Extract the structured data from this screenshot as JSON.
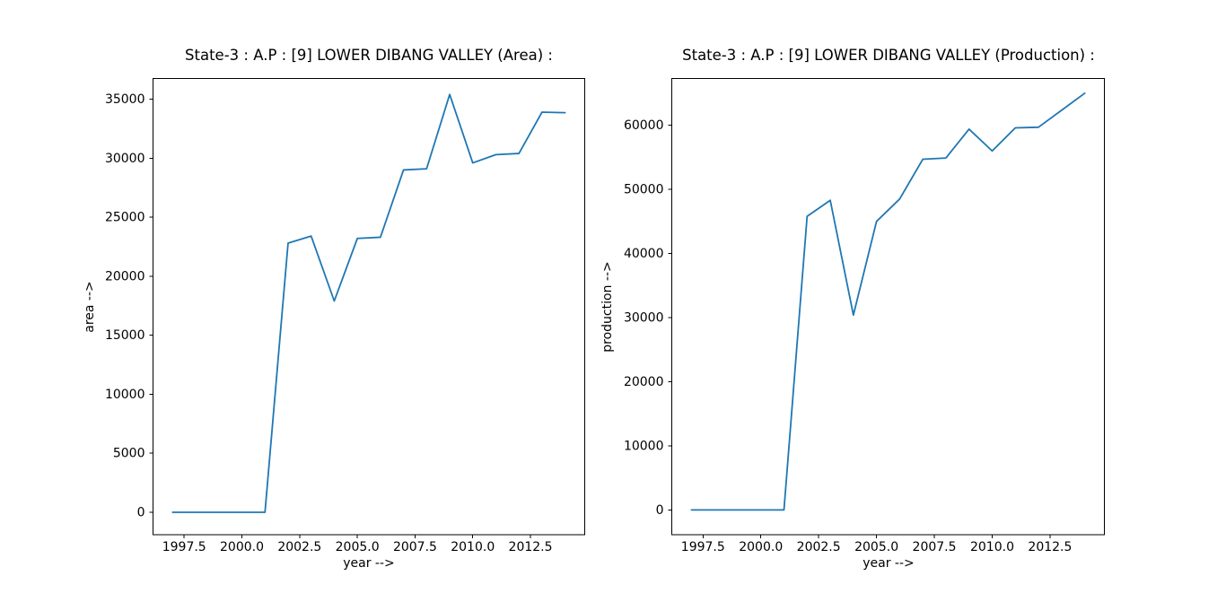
{
  "figure": {
    "background": "#ffffff",
    "text_color": "#000000",
    "spine_color": "#000000",
    "line_color": "#1f77b4"
  },
  "chart_data": [
    {
      "type": "line",
      "title": "State-3 : A.P : [9] LOWER DIBANG VALLEY (Area) :",
      "xlabel": "year -->",
      "ylabel": "area -->",
      "grid": false,
      "legend": null,
      "x": [
        1997,
        1998,
        1999,
        2000,
        2001,
        2002,
        2003,
        2004,
        2005,
        2006,
        2007,
        2008,
        2009,
        2010,
        2011,
        2012,
        2013,
        2014
      ],
      "values": [
        0,
        0,
        0,
        0,
        0,
        22800,
        23400,
        17900,
        23200,
        23300,
        29000,
        29100,
        35400,
        29600,
        30300,
        30400,
        33900,
        33850
      ],
      "xlim": [
        1996.15,
        2014.85
      ],
      "ylim": [
        -1900,
        36750
      ],
      "xtick_values": [
        1997.5,
        2000.0,
        2002.5,
        2005.0,
        2007.5,
        2010.0,
        2012.5
      ],
      "xtick_labels": [
        "1997.5",
        "2000.0",
        "2002.5",
        "2005.0",
        "2007.5",
        "2010.0",
        "2012.5"
      ],
      "ytick_values": [
        0,
        5000,
        10000,
        15000,
        20000,
        25000,
        30000,
        35000
      ],
      "ytick_labels": [
        "0",
        "5000",
        "10000",
        "15000",
        "20000",
        "25000",
        "30000",
        "35000"
      ]
    },
    {
      "type": "line",
      "title": "State-3 : A.P : [9] LOWER DIBANG VALLEY (Production) :",
      "xlabel": "year -->",
      "ylabel": "production -->",
      "grid": false,
      "legend": null,
      "x": [
        1997,
        1998,
        1999,
        2000,
        2001,
        2002,
        2003,
        2004,
        2005,
        2006,
        2007,
        2008,
        2009,
        2010,
        2011,
        2012,
        2013,
        2014
      ],
      "values": [
        0,
        0,
        0,
        0,
        0,
        45800,
        48300,
        30400,
        45000,
        48500,
        54700,
        54900,
        59400,
        56000,
        59600,
        59700,
        62350,
        65000
      ],
      "xlim": [
        1996.15,
        2014.85
      ],
      "ylim": [
        -3870,
        67300
      ],
      "xtick_values": [
        1997.5,
        2000.0,
        2002.5,
        2005.0,
        2007.5,
        2010.0,
        2012.5
      ],
      "xtick_labels": [
        "1997.5",
        "2000.0",
        "2002.5",
        "2005.0",
        "2007.5",
        "2010.0",
        "2012.5"
      ],
      "ytick_values": [
        0,
        10000,
        20000,
        30000,
        40000,
        50000,
        60000
      ],
      "ytick_labels": [
        "0",
        "10000",
        "20000",
        "30000",
        "40000",
        "50000",
        "60000"
      ]
    }
  ]
}
